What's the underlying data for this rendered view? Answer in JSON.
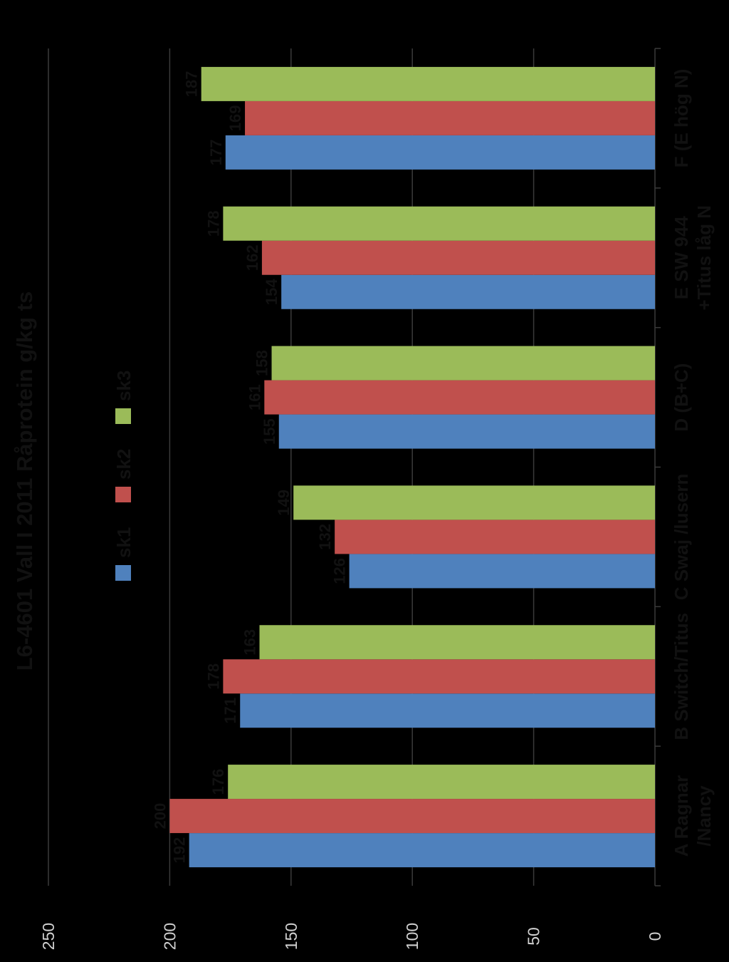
{
  "chart_data": {
    "type": "bar",
    "orientation": "horizontal",
    "title": "L6-4601 Vall I  2011 Råprotein g/kg ts",
    "categories": [
      [
        "A  Ragnar",
        "/Nancy"
      ],
      [
        "B Switch/Titus"
      ],
      [
        "C Swaj /lusern"
      ],
      [
        "D (B+C)"
      ],
      [
        "E SW 944",
        "+Titus låg N"
      ],
      [
        "F (E hög N)"
      ]
    ],
    "series": [
      {
        "name": "sk1",
        "color": "#4f81bd",
        "values": [
          192,
          171,
          126,
          155,
          154,
          177
        ]
      },
      {
        "name": "sk2",
        "color": "#c0504d",
        "values": [
          200,
          178,
          132,
          161,
          162,
          169
        ]
      },
      {
        "name": "sk3",
        "color": "#9bbb59",
        "values": [
          176,
          163,
          149,
          158,
          178,
          187
        ]
      }
    ],
    "xlim": [
      0,
      250
    ],
    "ticks": [
      "0",
      "50",
      "100",
      "150",
      "200",
      "250"
    ],
    "grid": true,
    "data_labels": true,
    "legend_position": "top"
  },
  "colors": {
    "background": "#000000",
    "gridline": "#3a3a3a",
    "tick_text": "#d0d0d0"
  }
}
